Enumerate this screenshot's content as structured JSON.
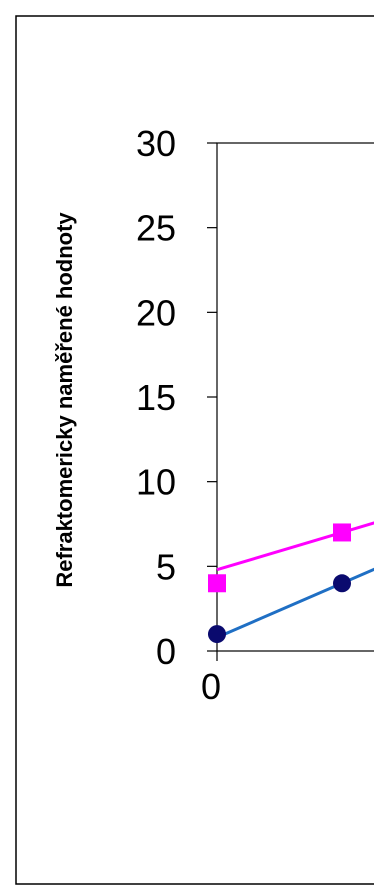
{
  "chart_data": {
    "type": "scatter",
    "title": "",
    "xlabel": "",
    "ylabel": "Refraktomericky naměřené hodnoty",
    "ylim": [
      0,
      30
    ],
    "yticks": [
      0,
      5,
      10,
      15,
      20,
      25,
      30
    ],
    "xticks_visible": [
      "0"
    ],
    "grid": false,
    "legend": "none",
    "series": [
      {
        "marker": "square",
        "color": "#ff00ff",
        "points": [
          [
            0,
            4
          ],
          [
            1,
            7
          ]
        ],
        "trendline": {
          "intercept": 4.8,
          "slope": 2.2,
          "color": "#ff00ff"
        }
      },
      {
        "marker": "circle",
        "color": "#0a0a6e",
        "points": [
          [
            0,
            1
          ],
          [
            1,
            4
          ]
        ],
        "trendline": {
          "intercept": 0.8,
          "slope": 3.2,
          "color": "#1f6fc4"
        }
      }
    ]
  }
}
